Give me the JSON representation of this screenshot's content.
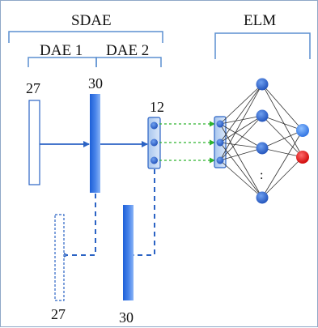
{
  "groups": {
    "sdae": "SDAE",
    "dae1": "DAE 1",
    "dae2": "DAE 2",
    "elm": "ELM"
  },
  "layer_sizes": {
    "input_top": "27",
    "hidden1_top": "30",
    "hidden2_top": "12",
    "recon_input": "27",
    "recon_hidden1": "30"
  },
  "elm": {
    "hidden_ellipsis": ":"
  },
  "colors": {
    "bracket": "#5b8fd0",
    "arrow": "#2b63c4",
    "dashed_link": "#2fb42f",
    "node": "#2e66cf",
    "output_positive": "#3a7de6",
    "output_negative": "#e11a1a"
  }
}
